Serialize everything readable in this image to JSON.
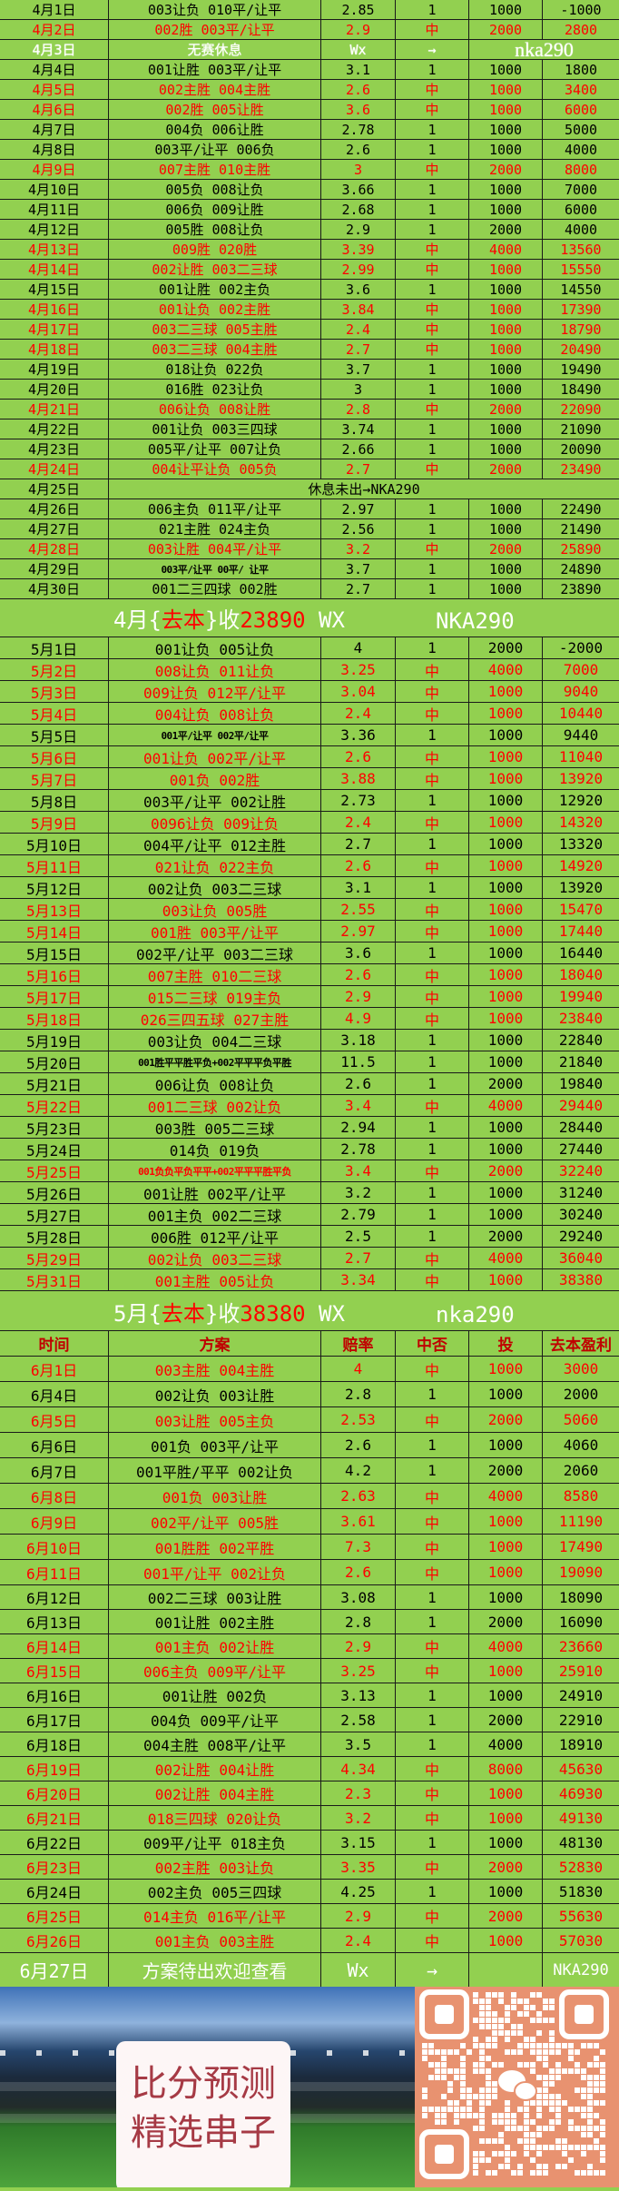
{
  "colors": {
    "background": "#92d050",
    "hit": "#ff0000",
    "header": "#c00000",
    "text": "#000000"
  },
  "april": {
    "rows": [
      [
        "4月1日",
        "003让负 010平/让平",
        "2.85",
        "1",
        "1000",
        "-1000"
      ],
      [
        "4月2日",
        "002胜 003平/让平",
        "2.9",
        "中",
        "2000",
        "2800"
      ],
      [
        "4月3日",
        "无赛休息",
        "Wx",
        "→",
        "nka290",
        ""
      ],
      [
        "4月4日",
        "001让胜 003平/让平",
        "3.1",
        "1",
        "1000",
        "1800"
      ],
      [
        "4月5日",
        "002主胜 004主胜",
        "2.6",
        "中",
        "1000",
        "3400"
      ],
      [
        "4月6日",
        "002胜 005让胜",
        "3.6",
        "中",
        "1000",
        "6000"
      ],
      [
        "4月7日",
        "004负 006让胜",
        "2.78",
        "1",
        "1000",
        "5000"
      ],
      [
        "4月8日",
        "003平/让平 006负",
        "2.6",
        "1",
        "1000",
        "4000"
      ],
      [
        "4月9日",
        "007主胜 010主胜",
        "3",
        "中",
        "2000",
        "8000"
      ],
      [
        "4月10日",
        "005负 008让负",
        "3.66",
        "1",
        "1000",
        "7000"
      ],
      [
        "4月11日",
        "006负 009让胜",
        "2.68",
        "1",
        "1000",
        "6000"
      ],
      [
        "4月12日",
        "005胜 008让负",
        "2.9",
        "1",
        "2000",
        "4000"
      ],
      [
        "4月13日",
        "009胜 020胜",
        "3.39",
        "中",
        "4000",
        "13560"
      ],
      [
        "4月14日",
        "002让胜 003二三球",
        "2.99",
        "中",
        "1000",
        "15550"
      ],
      [
        "4月15日",
        "001让胜 002主负",
        "3.6",
        "1",
        "1000",
        "14550"
      ],
      [
        "4月16日",
        "001让负 002主胜",
        "3.84",
        "中",
        "1000",
        "17390"
      ],
      [
        "4月17日",
        "003二三球 005主胜",
        "2.4",
        "中",
        "1000",
        "18790"
      ],
      [
        "4月18日",
        "003二三球 004主胜",
        "2.7",
        "中",
        "1000",
        "20490"
      ],
      [
        "4月19日",
        "018让负 022负",
        "3.7",
        "1",
        "1000",
        "19490"
      ],
      [
        "4月20日",
        "016胜 023让负",
        "3",
        "1",
        "1000",
        "18490"
      ],
      [
        "4月21日",
        "006让负 008让胜",
        "2.8",
        "中",
        "2000",
        "22090"
      ],
      [
        "4月22日",
        "001让负 003三四球",
        "3.74",
        "1",
        "1000",
        "21090"
      ],
      [
        "4月23日",
        "005平/让平 007让负",
        "2.66",
        "1",
        "1000",
        "20090"
      ],
      [
        "4月24日",
        "004让平让负 005负",
        "2.7",
        "中",
        "2000",
        "23490"
      ],
      [
        "4月25日",
        "休息未出→NKA290",
        "",
        "",
        "",
        ""
      ],
      [
        "4月26日",
        "006主负 011平/让平",
        "2.97",
        "1",
        "1000",
        "22490"
      ],
      [
        "4月27日",
        "021主胜 024主负",
        "2.56",
        "1",
        "1000",
        "21490"
      ],
      [
        "4月28日",
        "003让胜 004平/让平",
        "3.2",
        "中",
        "2000",
        "25890"
      ],
      [
        "4月29日",
        "003平/让平 00平/ 让平",
        "3.7",
        "1",
        "1000",
        "24890"
      ],
      [
        "4月30日",
        "001二三四球 002胜",
        "2.7",
        "1",
        "1000",
        "23890"
      ]
    ],
    "summary": {
      "month": "4月",
      "open": "{",
      "label": "去本",
      "close": "}",
      "verb": "收",
      "amount": "23890",
      "wx": " WX",
      "id": "NKA290"
    }
  },
  "may": {
    "rows": [
      [
        "5月1日",
        "001让负 005让负",
        "4",
        "1",
        "2000",
        "-2000"
      ],
      [
        "5月2日",
        "008让负 011让负",
        "3.25",
        "中",
        "4000",
        "7000"
      ],
      [
        "5月3日",
        "009让负 012平/让平",
        "3.04",
        "中",
        "1000",
        "9040"
      ],
      [
        "5月4日",
        "004让负 008让负",
        "2.4",
        "中",
        "1000",
        "10440"
      ],
      [
        "5月5日",
        "001平/让平 002平/让平",
        "3.36",
        "1",
        "1000",
        "9440"
      ],
      [
        "5月6日",
        "001让负 002平/让平",
        "2.6",
        "中",
        "1000",
        "11040"
      ],
      [
        "5月7日",
        "001负 002胜",
        "3.88",
        "中",
        "1000",
        "13920"
      ],
      [
        "5月8日",
        "003平/让平 002让胜",
        "2.73",
        "1",
        "1000",
        "12920"
      ],
      [
        "5月9日",
        "0096让负 009让负",
        "2.4",
        "中",
        "1000",
        "14320"
      ],
      [
        "5月10日",
        "004平/让平 012主胜",
        "2.7",
        "1",
        "1000",
        "13320"
      ],
      [
        "5月11日",
        "021让负 022主负",
        "2.6",
        "中",
        "1000",
        "14920"
      ],
      [
        "5月12日",
        "002让负 003二三球",
        "3.1",
        "1",
        "1000",
        "13920"
      ],
      [
        "5月13日",
        "003让负 005胜",
        "2.55",
        "中",
        "1000",
        "15470"
      ],
      [
        "5月14日",
        "001胜 003平/让平",
        "2.97",
        "中",
        "1000",
        "17440"
      ],
      [
        "5月15日",
        "002平/让平 003二三球",
        "3.6",
        "1",
        "1000",
        "16440"
      ],
      [
        "5月16日",
        "007主胜 010二三球",
        "2.6",
        "中",
        "1000",
        "18040"
      ],
      [
        "5月17日",
        "015二三球 019主负",
        "2.9",
        "中",
        "1000",
        "19940"
      ],
      [
        "5月18日",
        "026三四五球 027主胜",
        "4.9",
        "中",
        "1000",
        "23840"
      ],
      [
        "5月19日",
        "003让负 004二三球",
        "3.18",
        "1",
        "1000",
        "22840"
      ],
      [
        "5月20日",
        "001胜平平胜平负+002平平平负平胜",
        "11.5",
        "1",
        "1000",
        "21840"
      ],
      [
        "5月21日",
        "006让负 008让负",
        "2.6",
        "1",
        "2000",
        "19840"
      ],
      [
        "5月22日",
        "001二三球 002让负",
        "3.4",
        "中",
        "4000",
        "29440"
      ],
      [
        "5月23日",
        "003胜 005二三球",
        "2.94",
        "1",
        "1000",
        "28440"
      ],
      [
        "5月24日",
        "014负 019负",
        "2.78",
        "1",
        "1000",
        "27440"
      ],
      [
        "5月25日",
        "001负负平负平平+002平平平胜平负",
        "3.4",
        "中",
        "2000",
        "32240"
      ],
      [
        "5月26日",
        "001让胜 002平/让平",
        "3.2",
        "1",
        "1000",
        "31240"
      ],
      [
        "5月27日",
        "001主负 002二三球",
        "2.79",
        "1",
        "1000",
        "30240"
      ],
      [
        "5月28日",
        "006胜 012平/让平",
        "2.5",
        "1",
        "2000",
        "29240"
      ],
      [
        "5月29日",
        "002让负 003二三球",
        "2.7",
        "中",
        "4000",
        "36040"
      ],
      [
        "5月31日",
        "001主胜 005让负",
        "3.34",
        "中",
        "1000",
        "38380"
      ]
    ],
    "summary": {
      "month": "5月",
      "open": "{",
      "label": "去本",
      "close": "}",
      "verb": "收",
      "amount": "38380",
      "wx": " WX",
      "id": "nka290"
    }
  },
  "june": {
    "headers": [
      "时间",
      "方案",
      "赔率",
      "中否",
      "投",
      "去本盈利"
    ],
    "rows": [
      [
        "6月1日",
        "003主胜 004主胜",
        "4",
        "中",
        "1000",
        "3000"
      ],
      [
        "6月4日",
        "002让负 003让胜",
        "2.8",
        "1",
        "1000",
        "2000"
      ],
      [
        "6月5日",
        "003让胜 005主负",
        "2.53",
        "中",
        "2000",
        "5060"
      ],
      [
        "6月6日",
        "001负 003平/让平",
        "2.6",
        "1",
        "1000",
        "4060"
      ],
      [
        "6月7日",
        "001平胜/平平 002让负",
        "4.2",
        "1",
        "2000",
        "2060"
      ],
      [
        "6月8日",
        "001负 003让胜",
        "2.63",
        "中",
        "4000",
        "8580"
      ],
      [
        "6月9日",
        "002平/让平 005胜",
        "3.61",
        "中",
        "1000",
        "11190"
      ],
      [
        "6月10日",
        "001胜胜 002平胜",
        "7.3",
        "中",
        "1000",
        "17490"
      ],
      [
        "6月11日",
        "001平/让平 002让负",
        "2.6",
        "中",
        "1000",
        "19090"
      ],
      [
        "6月12日",
        "002二三球 003让胜",
        "3.08",
        "1",
        "1000",
        "18090"
      ],
      [
        "6月13日",
        "001让胜 002主胜",
        "2.8",
        "1",
        "2000",
        "16090"
      ],
      [
        "6月14日",
        "001主负 002让胜",
        "2.9",
        "中",
        "4000",
        "23660"
      ],
      [
        "6月15日",
        "006主负 009平/让平",
        "3.25",
        "中",
        "1000",
        "25910"
      ],
      [
        "6月16日",
        "001让胜 002负",
        "3.13",
        "1",
        "1000",
        "24910"
      ],
      [
        "6月17日",
        "004负 009平/让平",
        "2.58",
        "1",
        "2000",
        "22910"
      ],
      [
        "6月18日",
        "004主胜 008平/让平",
        "3.5",
        "1",
        "4000",
        "18910"
      ],
      [
        "6月19日",
        "002让胜 004让胜",
        "4.34",
        "中",
        "8000",
        "45630"
      ],
      [
        "6月20日",
        "002让胜 004主胜",
        "2.3",
        "中",
        "1000",
        "46930"
      ],
      [
        "6月21日",
        "018三四球 020让负",
        "3.2",
        "中",
        "1000",
        "49130"
      ],
      [
        "6月22日",
        "009平/让平 018主负",
        "3.15",
        "1",
        "1000",
        "48130"
      ],
      [
        "6月23日",
        "002主胜 003让负",
        "3.35",
        "中",
        "2000",
        "52830"
      ],
      [
        "6月24日",
        "002主负 005三四球",
        "4.25",
        "1",
        "1000",
        "51830"
      ],
      [
        "6月25日",
        "014主负 016平/让平",
        "2.9",
        "中",
        "2000",
        "55630"
      ],
      [
        "6月26日",
        "001主负 003主胜",
        "2.4",
        "中",
        "1000",
        "57030"
      ]
    ],
    "next": [
      "6月27日",
      "方案待出欢迎查看",
      "Wx",
      "→",
      "",
      "NKA290"
    ]
  },
  "promo": {
    "line1": "比分预测",
    "line2": "精选串子",
    "qr_icon": "wechat-icon"
  }
}
